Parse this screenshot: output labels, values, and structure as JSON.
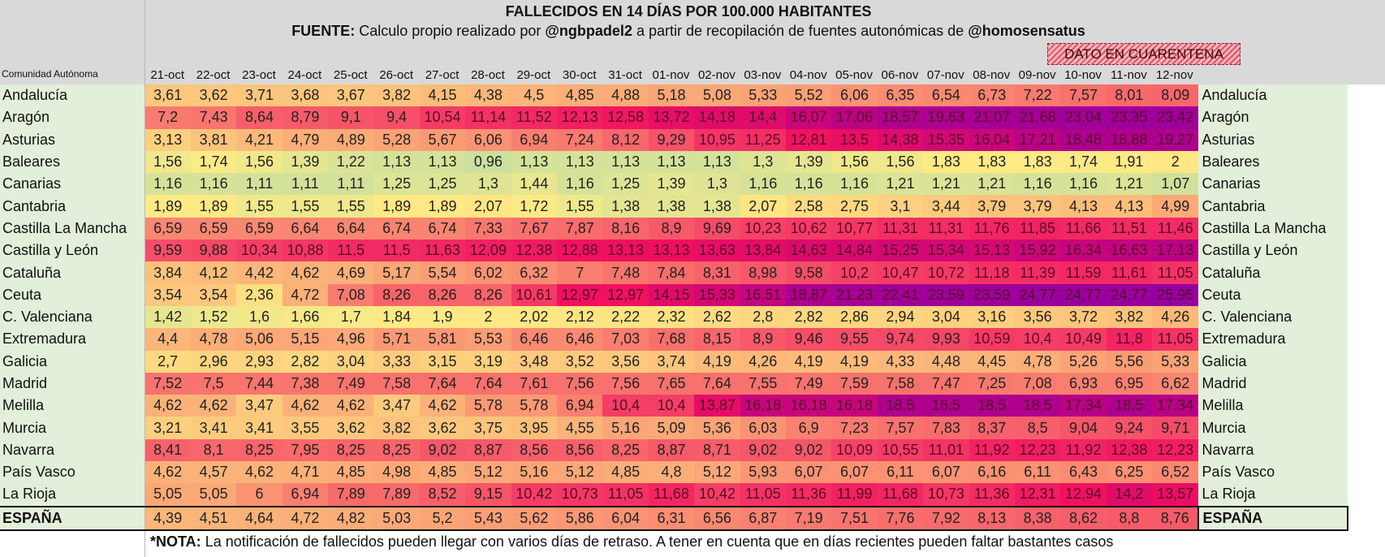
{
  "header": {
    "title": "FALLECIDOS EN 14 DÍAS POR 100.000 HABITANTES",
    "source_label": "FUENTE:",
    "source_text_1": "Calculo propio realizado por",
    "source_handle_1": "@ngbpadel2",
    "source_text_2": "a partir de recopilación de fuentes autonómicas de",
    "source_handle_2": "@homosensatus",
    "quarantine_label": "DATO EN CUARENTENA",
    "row_header_label": "Comunidad Autónoma"
  },
  "note": {
    "label": "*NOTA:",
    "text": "La notificación de fallecidos pueden llegar con varios días de retraso. A tener en cuenta que en días recientes pueden faltar bastantes casos"
  },
  "colors": {
    "header_bg": "#d9d9d9",
    "name_bg": "#e2efda",
    "scale": [
      "#c6dfa0",
      "#ffeb84",
      "#fcbf7b",
      "#f8696b",
      "#f0105f",
      "#a0009a"
    ]
  },
  "chart_data": {
    "type": "heatmap",
    "title": "FALLECIDOS EN 14 DÍAS POR 100.000 HABITANTES",
    "xlabel": "",
    "ylabel": "Comunidad Autónoma",
    "quarantine_columns": [
      "09-nov",
      "10-nov",
      "11-nov",
      "12-nov"
    ],
    "x": [
      "21-oct",
      "22-oct",
      "23-oct",
      "24-oct",
      "25-oct",
      "26-oct",
      "27-oct",
      "28-oct",
      "29-oct",
      "30-oct",
      "31-oct",
      "01-nov",
      "02-nov",
      "03-nov",
      "04-nov",
      "05-nov",
      "06-nov",
      "07-nov",
      "08-nov",
      "09-nov",
      "10-nov",
      "11-nov",
      "12-nov"
    ],
    "series": [
      {
        "name": "Andalucía",
        "values": [
          "3,61",
          "3,62",
          "3,71",
          "3,68",
          "3,67",
          "3,82",
          "4,15",
          "4,38",
          "4,5",
          "4,85",
          "4,88",
          "5,18",
          "5,08",
          "5,33",
          "5,52",
          "6,06",
          "6,35",
          "6,54",
          "6,73",
          "7,22",
          "7,57",
          "8,01",
          "8,09"
        ]
      },
      {
        "name": "Aragón",
        "values": [
          "7,2",
          "7,43",
          "8,64",
          "8,79",
          "9,1",
          "9,4",
          "10,54",
          "11,14",
          "11,52",
          "12,13",
          "12,58",
          "13,72",
          "14,18",
          "14,4",
          "16,07",
          "17,06",
          "18,57",
          "19,63",
          "21,07",
          "21,68",
          "23,04",
          "23,35",
          "23,42"
        ]
      },
      {
        "name": "Asturias",
        "values": [
          "3,13",
          "3,81",
          "4,21",
          "4,79",
          "4,89",
          "5,28",
          "5,67",
          "6,06",
          "6,94",
          "7,24",
          "8,12",
          "9,29",
          "10,95",
          "11,25",
          "12,81",
          "13,5",
          "14,38",
          "15,35",
          "16,04",
          "17,21",
          "18,48",
          "18,88",
          "19,27"
        ]
      },
      {
        "name": "Baleares",
        "values": [
          "1,56",
          "1,74",
          "1,56",
          "1,39",
          "1,22",
          "1,13",
          "1,13",
          "0,96",
          "1,13",
          "1,13",
          "1,13",
          "1,13",
          "1,13",
          "1,3",
          "1,39",
          "1,56",
          "1,56",
          "1,83",
          "1,83",
          "1,83",
          "1,74",
          "1,91",
          "2"
        ]
      },
      {
        "name": "Canarias",
        "values": [
          "1,16",
          "1,16",
          "1,11",
          "1,11",
          "1,11",
          "1,25",
          "1,25",
          "1,3",
          "1,44",
          "1,16",
          "1,25",
          "1,39",
          "1,3",
          "1,16",
          "1,16",
          "1,16",
          "1,21",
          "1,21",
          "1,21",
          "1,16",
          "1,16",
          "1,21",
          "1,07"
        ]
      },
      {
        "name": "Cantabria",
        "values": [
          "1,89",
          "1,89",
          "1,55",
          "1,55",
          "1,55",
          "1,89",
          "1,89",
          "2,07",
          "1,72",
          "1,55",
          "1,38",
          "1,38",
          "1,38",
          "2,07",
          "2,58",
          "2,75",
          "3,1",
          "3,44",
          "3,79",
          "3,79",
          "4,13",
          "4,13",
          "4,99"
        ]
      },
      {
        "name": "Castilla La Mancha",
        "values": [
          "6,59",
          "6,59",
          "6,59",
          "6,64",
          "6,64",
          "6,74",
          "6,74",
          "7,33",
          "7,67",
          "7,87",
          "8,16",
          "8,9",
          "9,69",
          "10,23",
          "10,62",
          "10,77",
          "11,31",
          "11,31",
          "11,76",
          "11,85",
          "11,66",
          "11,51",
          "11,46"
        ]
      },
      {
        "name": "Castilla y León",
        "values": [
          "9,59",
          "9,88",
          "10,34",
          "10,88",
          "11,5",
          "11,5",
          "11,63",
          "12,09",
          "12,38",
          "12,88",
          "13,13",
          "13,13",
          "13,63",
          "13,84",
          "14,63",
          "14,84",
          "15,25",
          "15,34",
          "15,13",
          "15,92",
          "16,34",
          "16,63",
          "17,13"
        ]
      },
      {
        "name": "Cataluña",
        "values": [
          "3,84",
          "4,12",
          "4,42",
          "4,62",
          "4,69",
          "5,17",
          "5,54",
          "6,02",
          "6,32",
          "7",
          "7,48",
          "7,84",
          "8,31",
          "8,98",
          "9,58",
          "10,2",
          "10,47",
          "10,72",
          "11,18",
          "11,39",
          "11,59",
          "11,61",
          "11,05"
        ]
      },
      {
        "name": "Ceuta",
        "values": [
          "3,54",
          "3,54",
          "2,36",
          "4,72",
          "7,08",
          "8,26",
          "8,26",
          "8,26",
          "10,61",
          "12,97",
          "12,97",
          "14,15",
          "15,33",
          "16,51",
          "18,87",
          "21,23",
          "22,41",
          "23,59",
          "23,59",
          "24,77",
          "24,77",
          "24,77",
          "25,95"
        ]
      },
      {
        "name": "C. Valenciana",
        "values": [
          "1,42",
          "1,52",
          "1,6",
          "1,66",
          "1,7",
          "1,84",
          "1,9",
          "2",
          "2,02",
          "2,12",
          "2,22",
          "2,32",
          "2,62",
          "2,8",
          "2,82",
          "2,86",
          "2,94",
          "3,04",
          "3,16",
          "3,56",
          "3,72",
          "3,82",
          "4,26"
        ]
      },
      {
        "name": "Extremadura",
        "values": [
          "4,4",
          "4,78",
          "5,06",
          "5,15",
          "4,96",
          "5,71",
          "5,81",
          "5,53",
          "6,46",
          "6,46",
          "7,03",
          "7,68",
          "8,15",
          "8,9",
          "9,46",
          "9,55",
          "9,74",
          "9,93",
          "10,59",
          "10,4",
          "10,49",
          "11,8",
          "11,05"
        ]
      },
      {
        "name": "Galicia",
        "values": [
          "2,7",
          "2,96",
          "2,93",
          "2,82",
          "3,04",
          "3,33",
          "3,15",
          "3,19",
          "3,48",
          "3,52",
          "3,56",
          "3,74",
          "4,19",
          "4,26",
          "4,19",
          "4,19",
          "4,33",
          "4,48",
          "4,45",
          "4,78",
          "5,26",
          "5,56",
          "5,33"
        ]
      },
      {
        "name": "Madrid",
        "values": [
          "7,52",
          "7,5",
          "7,44",
          "7,38",
          "7,49",
          "7,58",
          "7,64",
          "7,64",
          "7,61",
          "7,56",
          "7,56",
          "7,65",
          "7,64",
          "7,55",
          "7,49",
          "7,59",
          "7,58",
          "7,47",
          "7,25",
          "7,08",
          "6,93",
          "6,95",
          "6,62"
        ]
      },
      {
        "name": "Melilla",
        "values": [
          "4,62",
          "4,62",
          "3,47",
          "4,62",
          "4,62",
          "3,47",
          "4,62",
          "5,78",
          "5,78",
          "6,94",
          "10,4",
          "10,4",
          "13,87",
          "16,18",
          "16,18",
          "16,18",
          "18,5",
          "18,5",
          "18,5",
          "18,5",
          "17,34",
          "18,5",
          "17,34"
        ]
      },
      {
        "name": "Murcia",
        "values": [
          "3,21",
          "3,41",
          "3,41",
          "3,55",
          "3,62",
          "3,82",
          "3,62",
          "3,75",
          "3,95",
          "4,55",
          "5,16",
          "5,09",
          "5,36",
          "6,03",
          "6,9",
          "7,23",
          "7,57",
          "7,83",
          "8,37",
          "8,5",
          "9,04",
          "9,24",
          "9,71"
        ]
      },
      {
        "name": "Navarra",
        "values": [
          "8,41",
          "8,1",
          "8,25",
          "7,95",
          "8,25",
          "8,25",
          "9,02",
          "8,87",
          "8,56",
          "8,56",
          "8,25",
          "8,87",
          "8,71",
          "9,02",
          "9,02",
          "10,09",
          "10,55",
          "11,01",
          "11,92",
          "12,23",
          "11,92",
          "12,38",
          "12,23"
        ]
      },
      {
        "name": "País Vasco",
        "values": [
          "4,62",
          "4,57",
          "4,62",
          "4,71",
          "4,85",
          "4,98",
          "4,85",
          "5,12",
          "5,16",
          "5,12",
          "4,85",
          "4,8",
          "5,12",
          "5,93",
          "6,07",
          "6,07",
          "6,11",
          "6,07",
          "6,16",
          "6,11",
          "6,43",
          "6,25",
          "6,52"
        ]
      },
      {
        "name": "La Rioja",
        "values": [
          "5,05",
          "5,05",
          "6",
          "6,94",
          "7,89",
          "7,89",
          "8,52",
          "9,15",
          "10,42",
          "10,73",
          "11,05",
          "11,68",
          "10,42",
          "11,05",
          "11,36",
          "11,99",
          "11,68",
          "10,73",
          "11,36",
          "12,31",
          "12,94",
          "14,2",
          "13,57"
        ]
      },
      {
        "name": "ESPAÑA",
        "values": [
          "4,39",
          "4,51",
          "4,64",
          "4,72",
          "4,82",
          "5,03",
          "5,2",
          "5,43",
          "5,62",
          "5,86",
          "6,04",
          "6,31",
          "6,56",
          "6,87",
          "7,19",
          "7,51",
          "7,76",
          "7,92",
          "8,13",
          "8,38",
          "8,62",
          "8,8",
          "8,76"
        ]
      }
    ]
  }
}
